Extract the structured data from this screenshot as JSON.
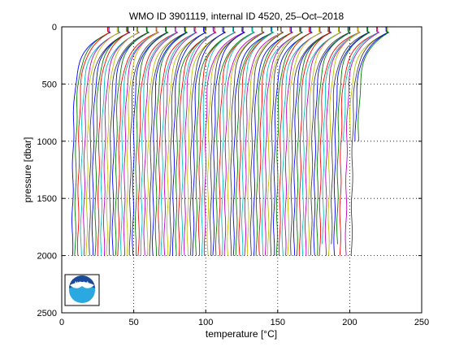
{
  "chart_data": {
    "type": "line",
    "title": "WMO ID 3901119, internal ID 4520, 25–Oct–2018",
    "xlabel": "temperature [°C]",
    "ylabel": "pressure [dbar]",
    "xlim": [
      0,
      250
    ],
    "ylim": [
      2500,
      0
    ],
    "y_reversed": true,
    "grid": true,
    "grid_style": "dotted",
    "x_ticks": [
      0,
      50,
      100,
      150,
      200,
      250
    ],
    "y_ticks": [
      0,
      500,
      1000,
      1500,
      2000,
      2500
    ],
    "series_note": "waterfall of ~100 temperature profiles, each offset along x",
    "profiles": {
      "count": 100,
      "first_deep_temperature": 7,
      "offset_per_profile": 2,
      "surface_warm_delta": 24,
      "mixed_layer_depth": 40,
      "thermocline_depth": 300,
      "max_pressure_typical": 2000,
      "short_profiles": [
        {
          "index": 95,
          "max_pressure": 1000
        },
        {
          "index": 97,
          "max_pressure": 1000
        },
        {
          "index": 99,
          "max_pressure": 1000
        },
        {
          "index": 100,
          "max_pressure": 1000
        },
        {
          "index": 88,
          "max_pressure": 1900
        },
        {
          "index": 91,
          "max_pressure": 1900
        },
        {
          "index": 93,
          "max_pressure": 1900
        }
      ]
    },
    "colors": [
      "#0000ff",
      "#008000",
      "#ff0000",
      "#00bfbf",
      "#bf00bf",
      "#bfbf00",
      "#404040"
    ]
  },
  "logo": {
    "text": "NOAA",
    "colors": {
      "sky": "#1b4b9b",
      "sea": "#2aa8e0",
      "bird": "#ffffff"
    }
  }
}
